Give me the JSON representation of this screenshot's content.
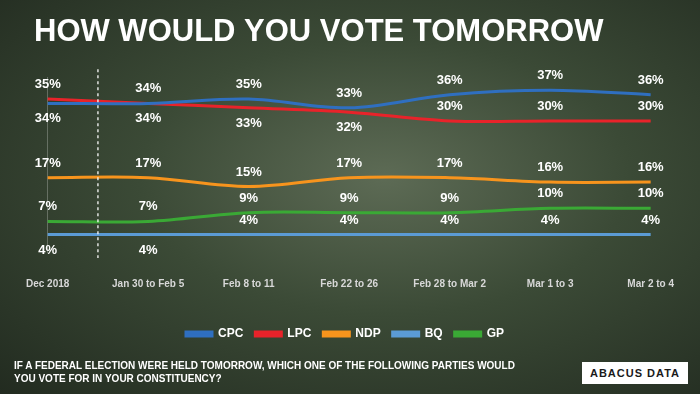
{
  "chart_data": {
    "type": "line",
    "title": "HOW WOULD YOU VOTE TOMORROW",
    "footnote": "IF A FEDERAL ELECTION WERE HELD TOMORROW, WHICH ONE OF THE FOLLOWING PARTIES WOULD YOU VOTE FOR IN YOUR CONSTITUENCY?",
    "logo": "ABACUS DATA",
    "categories": [
      "Dec 2018",
      "Jan 30 to Feb 5",
      "Feb 8 to 11",
      "Feb 22 to 26",
      "Feb 28 to Mar 2",
      "Mar 1 to 3",
      "Mar 2 to 4"
    ],
    "series": [
      {
        "name": "CPC",
        "color": "#2f6fc0",
        "values": [
          34,
          34,
          35,
          33,
          36,
          37,
          36
        ],
        "value_labels": [
          "34%",
          "34%",
          "35%",
          "33%",
          "36%",
          "37%",
          "36%"
        ]
      },
      {
        "name": "LPC",
        "color": "#e8232a",
        "values": [
          35,
          34,
          33,
          32,
          30,
          30,
          30
        ],
        "value_labels": [
          "35%",
          "34%",
          "33%",
          "32%",
          "30%",
          "30%",
          "30%"
        ]
      },
      {
        "name": "NDP",
        "color": "#f7941d",
        "values": [
          17,
          17,
          15,
          17,
          17,
          16,
          16
        ],
        "value_labels": [
          "17%",
          "17%",
          "15%",
          "17%",
          "17%",
          "16%",
          "16%"
        ]
      },
      {
        "name": "BQ",
        "color": "#5b9bd5",
        "values": [
          4,
          4,
          4,
          4,
          4,
          4,
          4
        ],
        "value_labels": [
          "4%",
          "4%",
          "4%",
          "4%",
          "4%",
          "4%",
          "4%"
        ]
      },
      {
        "name": "GP",
        "color": "#3aa935",
        "values": [
          7,
          7,
          9,
          9,
          9,
          10,
          10
        ],
        "value_labels": [
          "7%",
          "7%",
          "9%",
          "9%",
          "9%",
          "10%",
          "10%"
        ]
      }
    ],
    "ylim": [
      0,
      40
    ],
    "tick_labels": "x",
    "grid": false,
    "legend": "bottom",
    "data_labels": true
  }
}
